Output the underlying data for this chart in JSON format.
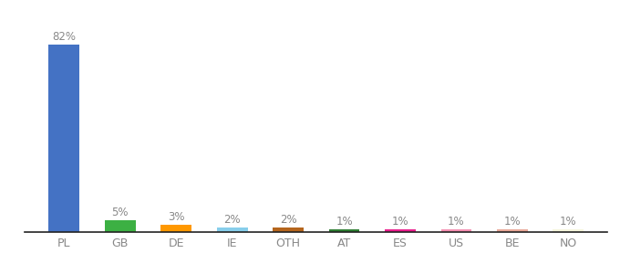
{
  "categories": [
    "PL",
    "GB",
    "DE",
    "IE",
    "OTH",
    "AT",
    "ES",
    "US",
    "BE",
    "NO"
  ],
  "values": [
    82,
    5,
    3,
    2,
    2,
    1,
    1,
    1,
    1,
    1
  ],
  "labels": [
    "82%",
    "5%",
    "3%",
    "2%",
    "2%",
    "1%",
    "1%",
    "1%",
    "1%",
    "1%"
  ],
  "bar_colors": [
    "#4472c4",
    "#3cb043",
    "#ff9800",
    "#87ceeb",
    "#b5651d",
    "#2e7d32",
    "#e91e8c",
    "#f48fb1",
    "#e8a898",
    "#f5f5dc"
  ],
  "label_fontsize": 8.5,
  "tick_fontsize": 9,
  "ylim": [
    0,
    92
  ],
  "background_color": "#ffffff",
  "label_color": "#888888",
  "tick_color": "#888888",
  "spine_color": "#222222"
}
